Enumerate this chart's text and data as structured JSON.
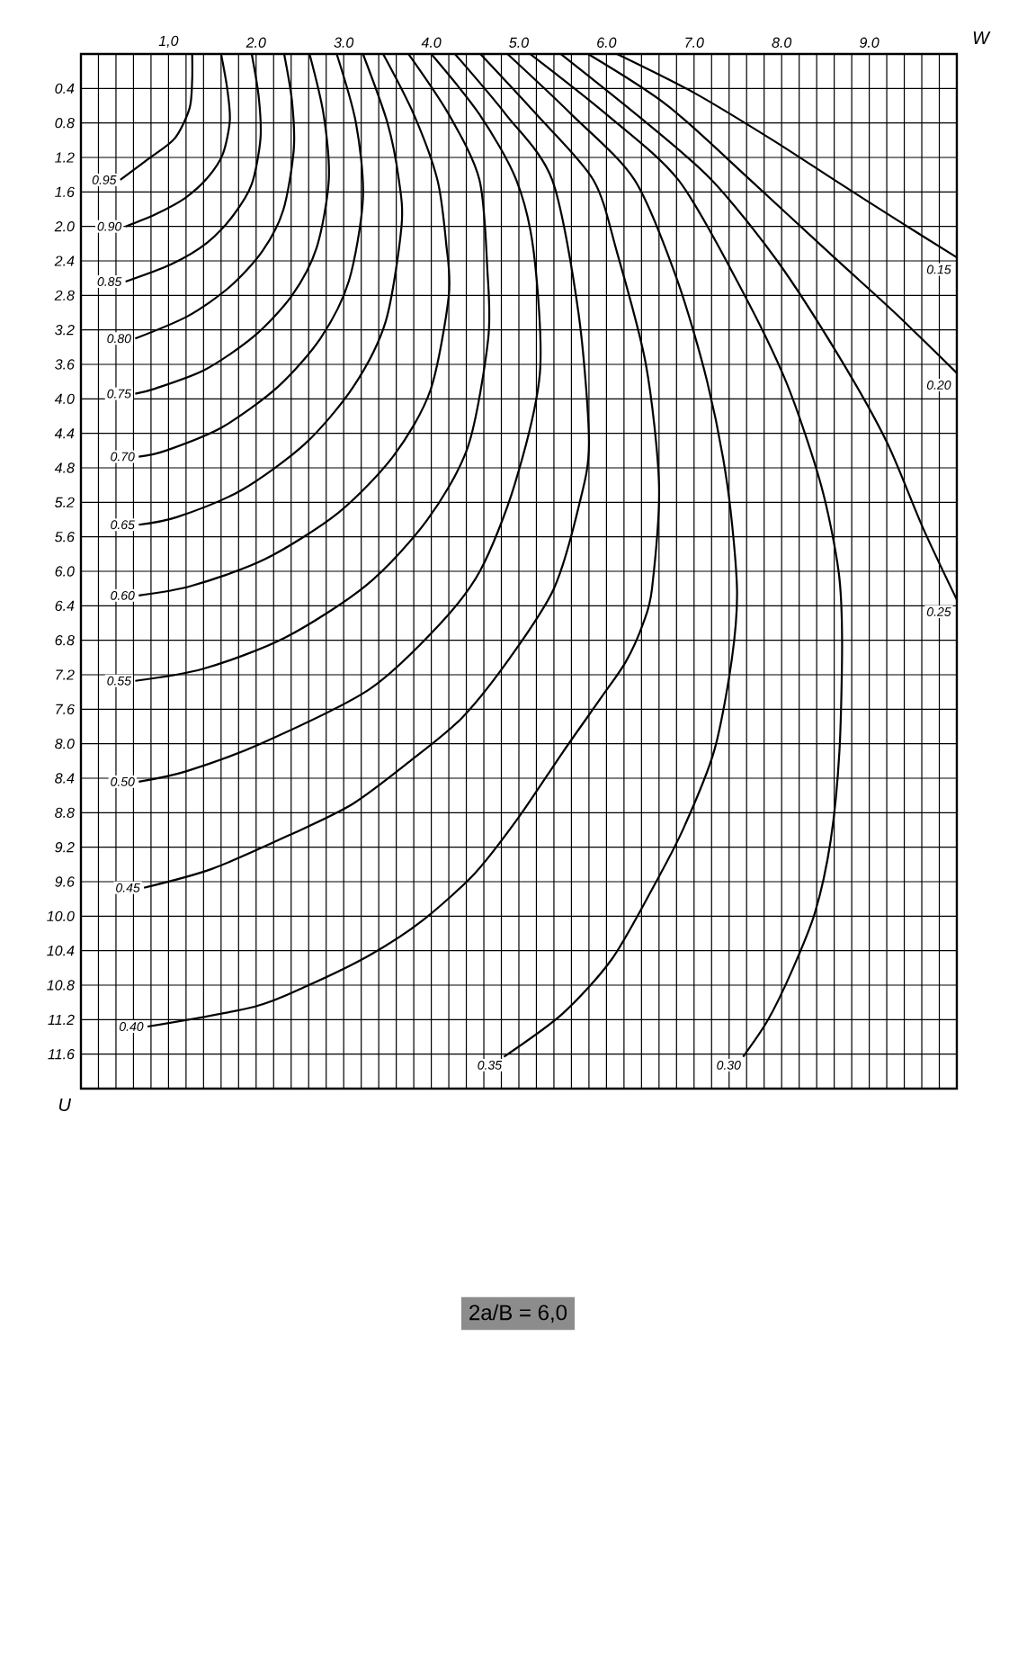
{
  "chart_data": {
    "type": "line",
    "xlabel": "W",
    "ylabel": "U",
    "xlim": [
      0,
      10
    ],
    "ylim": [
      12,
      0
    ],
    "grid": true,
    "xticks": [
      {
        "value": 0.2,
        "label": null
      },
      {
        "value": 0.4,
        "label": null
      },
      {
        "value": 0.6,
        "label": null
      },
      {
        "value": 0.8,
        "label": null
      },
      {
        "value": 1,
        "label": "1,0"
      },
      {
        "value": 1.2,
        "label": null
      },
      {
        "value": 1.4,
        "label": null
      },
      {
        "value": 1.6,
        "label": null
      },
      {
        "value": 1.8,
        "label": null
      },
      {
        "value": 2,
        "label": "2.0"
      },
      {
        "value": 2.2,
        "label": null
      },
      {
        "value": 2.4,
        "label": null
      },
      {
        "value": 2.6,
        "label": null
      },
      {
        "value": 2.8,
        "label": null
      },
      {
        "value": 3,
        "label": "3.0"
      },
      {
        "value": 3.2,
        "label": null
      },
      {
        "value": 3.4,
        "label": null
      },
      {
        "value": 3.6,
        "label": null
      },
      {
        "value": 3.8,
        "label": null
      },
      {
        "value": 4,
        "label": "4.0"
      },
      {
        "value": 4.2,
        "label": null
      },
      {
        "value": 4.4,
        "label": null
      },
      {
        "value": 4.6,
        "label": null
      },
      {
        "value": 4.8,
        "label": null
      },
      {
        "value": 5,
        "label": "5.0"
      },
      {
        "value": 5.2,
        "label": null
      },
      {
        "value": 5.4,
        "label": null
      },
      {
        "value": 5.6,
        "label": null
      },
      {
        "value": 5.8,
        "label": null
      },
      {
        "value": 6,
        "label": "6.0"
      },
      {
        "value": 6.2,
        "label": null
      },
      {
        "value": 6.4,
        "label": null
      },
      {
        "value": 6.6,
        "label": null
      },
      {
        "value": 6.8,
        "label": null
      },
      {
        "value": 7,
        "label": "7.0"
      },
      {
        "value": 7.2,
        "label": null
      },
      {
        "value": 7.4,
        "label": null
      },
      {
        "value": 7.6,
        "label": null
      },
      {
        "value": 7.8,
        "label": null
      },
      {
        "value": 8,
        "label": "8.0"
      },
      {
        "value": 8.2,
        "label": null
      },
      {
        "value": 8.4,
        "label": null
      },
      {
        "value": 8.6,
        "label": null
      },
      {
        "value": 8.8,
        "label": null
      },
      {
        "value": 9,
        "label": "9.0"
      },
      {
        "value": 9.2,
        "label": null
      },
      {
        "value": 9.4,
        "label": null
      },
      {
        "value": 9.6,
        "label": null
      },
      {
        "value": 9.8,
        "label": null
      }
    ],
    "yticks": [
      {
        "value": 0.4,
        "label": "0.4"
      },
      {
        "value": 0.8,
        "label": "0.8"
      },
      {
        "value": 1.2,
        "label": "1.2"
      },
      {
        "value": 1.6,
        "label": "1.6"
      },
      {
        "value": 2.0,
        "label": "2.0"
      },
      {
        "value": 2.4,
        "label": "2.4"
      },
      {
        "value": 2.8,
        "label": "2.8"
      },
      {
        "value": 3.2,
        "label": "3.2"
      },
      {
        "value": 3.6,
        "label": "3.6"
      },
      {
        "value": 4.0,
        "label": "4.0"
      },
      {
        "value": 4.4,
        "label": "4.4"
      },
      {
        "value": 4.8,
        "label": "4.8"
      },
      {
        "value": 5.2,
        "label": "5.2"
      },
      {
        "value": 5.6,
        "label": "5.6"
      },
      {
        "value": 6.0,
        "label": "6.0"
      },
      {
        "value": 6.4,
        "label": "6.4"
      },
      {
        "value": 6.8,
        "label": "6.8"
      },
      {
        "value": 7.2,
        "label": "7.2"
      },
      {
        "value": 7.6,
        "label": "7.6"
      },
      {
        "value": 8.0,
        "label": "8.0"
      },
      {
        "value": 8.4,
        "label": "8.4"
      },
      {
        "value": 8.8,
        "label": "8.8"
      },
      {
        "value": 9.2,
        "label": "9.2"
      },
      {
        "value": 9.6,
        "label": "9.6"
      },
      {
        "value": 10.0,
        "label": "10.0"
      },
      {
        "value": 10.4,
        "label": "10.4"
      },
      {
        "value": 10.8,
        "label": "10.8"
      },
      {
        "value": 11.2,
        "label": "11.2"
      },
      {
        "value": 11.6,
        "label": "11.6"
      }
    ],
    "series": [
      {
        "name": "0.95",
        "color": "#000000",
        "x": [
          1.27,
          1.27,
          1.24,
          1.07,
          0.78,
          0.45
        ],
        "values": [
          0,
          0.3,
          0.63,
          0.98,
          1.21,
          1.46
        ]
      },
      {
        "name": "0.90",
        "color": "#000000",
        "x": [
          1.6,
          1.67,
          1.7,
          1.62,
          1.45,
          1.19,
          0.85,
          0.51
        ],
        "values": [
          0,
          0.4,
          0.77,
          1.16,
          1.43,
          1.67,
          1.86,
          2.0
        ]
      },
      {
        "name": "0.85",
        "color": "#000000",
        "x": [
          1.95,
          2.03,
          2.05,
          1.95,
          1.74,
          1.44,
          1.03,
          0.51
        ],
        "values": [
          0,
          0.5,
          0.98,
          1.51,
          1.87,
          2.19,
          2.44,
          2.64
        ]
      },
      {
        "name": "0.80",
        "color": "#000000",
        "x": [
          2.32,
          2.41,
          2.43,
          2.31,
          2.07,
          1.7,
          1.22,
          0.62
        ],
        "values": [
          0,
          0.55,
          1.11,
          1.81,
          2.29,
          2.7,
          3.04,
          3.3
        ]
      },
      {
        "name": "0.75",
        "color": "#000000",
        "x": [
          2.61,
          2.77,
          2.83,
          2.69,
          2.41,
          1.98,
          1.42,
          0.85,
          0.62
        ],
        "values": [
          0,
          0.7,
          1.46,
          2.25,
          2.8,
          3.27,
          3.66,
          3.88,
          3.94
        ]
      },
      {
        "name": "0.70",
        "color": "#000000",
        "x": [
          2.92,
          3.14,
          3.22,
          3.06,
          2.74,
          2.25,
          1.61,
          0.97,
          0.66
        ],
        "values": [
          0,
          0.8,
          1.67,
          2.63,
          3.29,
          3.86,
          4.33,
          4.6,
          4.67
        ]
      },
      {
        "name": "0.65",
        "color": "#000000",
        "x": [
          3.22,
          3.5,
          3.63,
          3.66,
          3.48,
          3.11,
          2.56,
          1.83,
          1.1,
          0.66
        ],
        "values": [
          0,
          0.8,
          1.46,
          2.0,
          3.1,
          3.86,
          4.52,
          5.06,
          5.37,
          5.46
        ]
      },
      {
        "name": "0.60",
        "color": "#000000",
        "x": [
          3.45,
          3.8,
          4.07,
          4.17,
          4.2,
          3.99,
          3.57,
          2.94,
          2.1,
          1.26,
          0.66
        ],
        "values": [
          0,
          0.7,
          1.46,
          2.2,
          2.8,
          3.9,
          4.66,
          5.32,
          5.86,
          6.17,
          6.28
        ]
      },
      {
        "name": "0.55",
        "color": "#000000",
        "x": [
          3.74,
          4.2,
          4.55,
          4.64,
          4.65,
          4.42,
          3.95,
          3.26,
          2.33,
          1.4,
          0.62
        ],
        "values": [
          0,
          0.7,
          1.46,
          2.5,
          3.3,
          4.55,
          5.41,
          6.16,
          6.77,
          7.13,
          7.27
        ]
      },
      {
        "name": "0.50",
        "color": "#000000",
        "x": [
          4.0,
          4.55,
          4.97,
          5.17,
          5.24,
          4.95,
          4.56,
          4.1,
          3.29,
          2.05,
          1.2,
          0.66
        ],
        "values": [
          0,
          0.7,
          1.46,
          2.3,
          3.7,
          5.0,
          5.99,
          6.61,
          7.37,
          8.0,
          8.32,
          8.44
        ]
      },
      {
        "name": "0.45",
        "color": "#000000",
        "x": [
          4.27,
          4.85,
          5.38,
          5.68,
          5.8,
          5.69,
          5.4,
          4.9,
          4.35,
          3.76,
          3.1,
          2.4,
          1.5,
          0.72
        ],
        "values": [
          0,
          0.7,
          1.46,
          3.0,
          4.5,
          5.22,
          6.2,
          7.0,
          7.7,
          8.2,
          8.7,
          9.05,
          9.45,
          9.67
        ]
      },
      {
        "name": "0.40",
        "color": "#000000",
        "x": [
          4.56,
          5.2,
          5.85,
          6.12,
          6.45,
          6.6,
          6.52,
          6.42,
          6.22,
          5.95,
          5.5,
          5.0,
          4.5,
          3.9,
          3.3,
          2.6,
          1.98,
          0.76
        ],
        "values": [
          0,
          0.7,
          1.46,
          2.3,
          3.6,
          5.0,
          6.2,
          6.6,
          7.05,
          7.45,
          8.1,
          8.85,
          9.5,
          10.05,
          10.45,
          10.8,
          11.05,
          11.28
        ]
      },
      {
        "name": "0.35",
        "color": "#000000",
        "x": [
          4.87,
          5.6,
          6.32,
          6.8,
          7.15,
          7.38,
          7.49,
          7.43,
          7.23,
          6.88,
          6.53,
          6.06,
          5.5,
          4.83
        ],
        "values": [
          0,
          0.7,
          1.46,
          2.6,
          3.8,
          5.0,
          6.2,
          7.03,
          8.08,
          8.98,
          9.67,
          10.5,
          11.13,
          11.63
        ]
      },
      {
        "name": "0.30",
        "color": "#000000",
        "x": [
          5.13,
          6.0,
          6.82,
          7.5,
          8.05,
          8.45,
          8.65,
          8.69,
          8.66,
          8.56,
          8.38,
          8.11,
          7.84,
          7.56
        ],
        "values": [
          0,
          0.7,
          1.46,
          2.65,
          3.8,
          5.0,
          6.0,
          6.8,
          8.08,
          9.12,
          9.96,
          10.65,
          11.21,
          11.63
        ]
      },
      {
        "name": "0.25",
        "color": "#000000",
        "x": [
          5.48,
          6.4,
          7.2,
          7.95,
          8.65,
          9.2,
          9.61,
          10
        ],
        "values": [
          0,
          0.75,
          1.46,
          2.4,
          3.5,
          4.5,
          5.49,
          6.33
        ]
      },
      {
        "name": "0.20",
        "color": "#000000",
        "x": [
          5.79,
          6.7,
          7.64,
          8.6,
          9.28,
          10
        ],
        "values": [
          0,
          0.6,
          1.46,
          2.36,
          2.99,
          3.7
        ]
      },
      {
        "name": "0.15",
        "color": "#000000",
        "x": [
          6.12,
          7.0,
          7.9,
          8.6,
          9.34,
          10
        ],
        "values": [
          0,
          0.45,
          1.0,
          1.46,
          1.94,
          2.36
        ]
      }
    ],
    "annotations": [
      "2a/B = 6,0"
    ]
  }
}
